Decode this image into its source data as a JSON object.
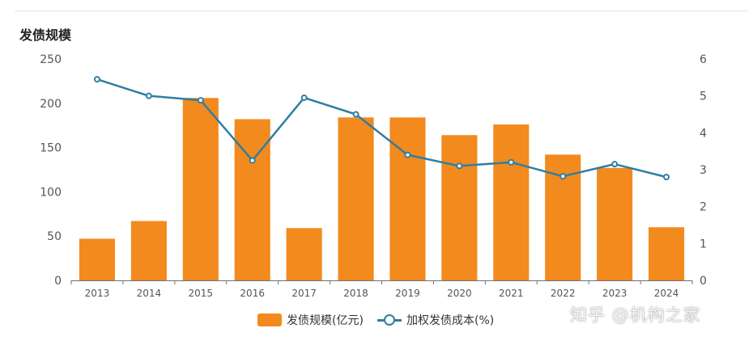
{
  "chart_data": {
    "type": "bar",
    "title": "发债规模",
    "categories": [
      "2013",
      "2014",
      "2015",
      "2016",
      "2017",
      "2018",
      "2019",
      "2020",
      "2021",
      "2022",
      "2023",
      "2024"
    ],
    "series": [
      {
        "name": "发债规模(亿元)",
        "type": "bar",
        "axis": "left",
        "values": [
          47,
          67,
          206,
          182,
          59,
          184,
          184,
          164,
          176,
          142,
          127,
          60
        ]
      },
      {
        "name": "加权发债成本(%)",
        "type": "line",
        "axis": "right",
        "values": [
          5.45,
          5.0,
          4.88,
          3.25,
          4.95,
          4.5,
          3.4,
          3.1,
          3.2,
          2.82,
          3.15,
          2.8
        ]
      }
    ],
    "y_left": {
      "ticks": [
        "0",
        "50",
        "100",
        "150",
        "200",
        "250"
      ],
      "ylim": [
        0,
        250
      ]
    },
    "y_right": {
      "ticks": [
        "0",
        "1",
        "2",
        "3",
        "4",
        "5",
        "6"
      ],
      "ylim": [
        0,
        6
      ]
    },
    "grid": false,
    "legend_position": "bottom-center",
    "colors": {
      "bar": "#f28a1e",
      "line": "#2f7ea3"
    }
  },
  "watermark": "知乎 @机构之家"
}
